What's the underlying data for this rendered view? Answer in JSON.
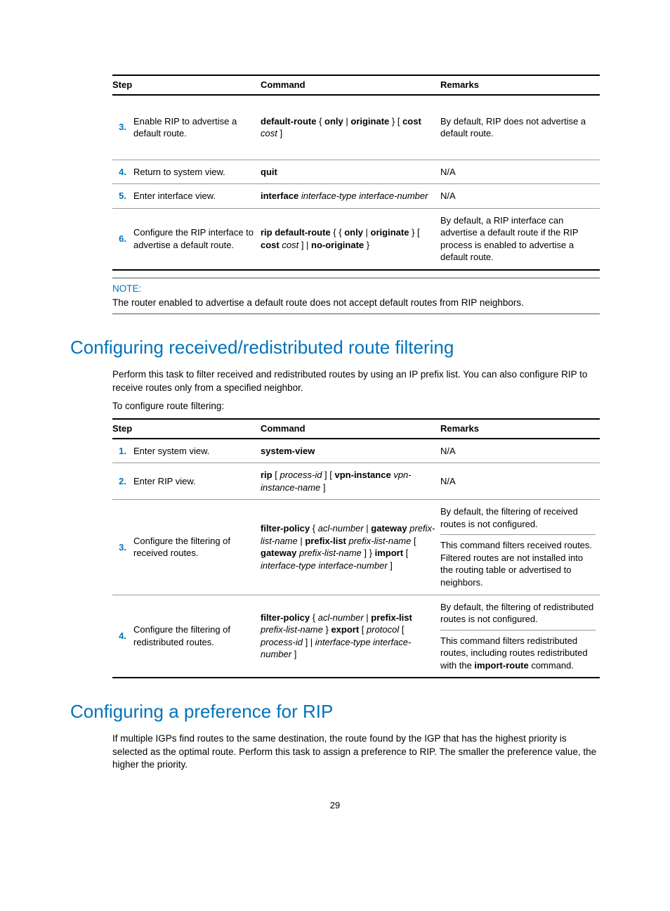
{
  "table1": {
    "head": {
      "c1": "Step",
      "c2": "Command",
      "c3": "Remarks"
    },
    "rows": [
      {
        "n": "3.",
        "step": "Enable RIP to advertise a default route.",
        "cmd": "<b>default-route</b> { <b>only</b> | <b>originate</b> } [ <b>cost</b> <i>cost</i> ]",
        "remark": "By default, RIP does not advertise a default route.",
        "tall": true
      },
      {
        "n": "4.",
        "step": "Return to system view.",
        "cmd": "<b>quit</b>",
        "remark": "N/A"
      },
      {
        "n": "5.",
        "step": "Enter interface view.",
        "cmd": "<b>interface</b> <i>interface-type interface-number</i>",
        "remark": "N/A"
      },
      {
        "n": "6.",
        "step": "Configure the RIP interface to advertise a default route.",
        "cmd": "<b>rip default-route</b> { { <b>only</b> | <b>originate</b> } [ <b>cost</b> <i>cost</i> ] | <b>no-originate</b> }",
        "remark": "By default, a RIP interface can advertise a default route if the RIP process is enabled to advertise a default route."
      }
    ]
  },
  "note": {
    "label": "NOTE:",
    "text": "The router enabled to advertise a default route does not accept default routes from RIP neighbors."
  },
  "h2a": "Configuring received/redistributed route filtering",
  "p1": "Perform this task to filter received and redistributed routes by using an IP prefix list. You can also configure RIP to receive routes only from a specified neighbor.",
  "p2": "To configure route filtering:",
  "table2": {
    "head": {
      "c1": "Step",
      "c2": "Command",
      "c3": "Remarks"
    },
    "rows": [
      {
        "n": "1.",
        "step": "Enter system view.",
        "cmd": "<b>system-view</b>",
        "remark": "N/A"
      },
      {
        "n": "2.",
        "step": "Enter RIP view.",
        "cmd": "<b>rip</b> [ <i>process-id</i> ] [ <b>vpn-instance</b> <i>vpn-instance-name</i> ]",
        "remark": "N/A"
      },
      {
        "n": "3.",
        "step": "Configure the filtering of received routes.",
        "cmd": "<b>filter-policy</b> { <i>acl-number</i> | <b>gateway</b> <i>prefix-list-name</i> | <b>prefix-list</b> <i>prefix-list-name</i> [ <b>gateway</b> <i>prefix-list-name</i> ] } <b>import</b> [ <i>interface-type interface-number</i> ]",
        "remark": "By default, the filtering of received routes is not configured.<div class=\"remark-split\">This command filters received routes. Filtered routes are not installed into the routing table or advertised to neighbors.</div>"
      },
      {
        "n": "4.",
        "step": "Configure the filtering of redistributed routes.",
        "cmd": "<b>filter-policy</b> { <i>acl-number</i> | <b>prefix-list</b> <i>prefix-list-name</i> } <b>export</b> [ <i>protocol</i> [ <i>process-id</i> ] | <i>interface-type interface-number</i> ]",
        "remark": "By default, the filtering of redistributed routes is not configured.<div class=\"remark-split\">This command filters redistributed routes, including routes redistributed with the <b>import-route</b> command.</div>"
      }
    ]
  },
  "h2b": "Configuring a preference for RIP",
  "p3": "If multiple IGPs find routes to the same destination, the route found by the IGP that has the highest priority is selected as the optimal route. Perform this task to assign a preference to RIP. The smaller the preference value, the higher the priority.",
  "pagenum": "29"
}
